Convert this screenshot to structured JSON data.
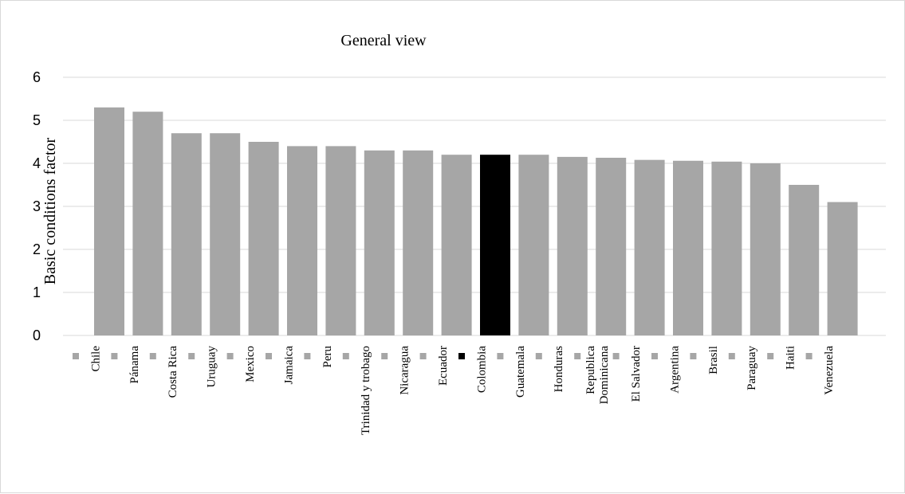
{
  "chart_data": {
    "type": "bar",
    "title": "General view",
    "xlabel": "",
    "ylabel": "Basic conditions factor",
    "ylim": [
      0,
      6
    ],
    "yticks": [
      0,
      1,
      2,
      3,
      4,
      5,
      6
    ],
    "grid": true,
    "legend": "none",
    "bar_color": "#a6a6a6",
    "highlight_color": "#000000",
    "highlight_category": "Colombia",
    "marker_color": "#a6a6a6",
    "categories": [
      "Chile",
      "Pánama",
      "Costa Rica",
      "Uruguay",
      "Mexico",
      "Jamaica",
      "Peru",
      "Trinidad y trobago",
      "Nicaragua",
      "Ecuador",
      "Colombia",
      "Guatemala",
      "Honduras",
      "Republica Dominicana",
      "El Salvador",
      "Argentina",
      "Brasil",
      "Paraguay",
      "Haiti",
      "Venezuela"
    ],
    "category_lines": [
      [
        "Chile"
      ],
      [
        "Pánama"
      ],
      [
        "Costa Rica"
      ],
      [
        "Uruguay"
      ],
      [
        "Mexico"
      ],
      [
        "Jamaica"
      ],
      [
        "Peru"
      ],
      [
        "Trinidad y trobago"
      ],
      [
        "Nicaragua"
      ],
      [
        "Ecuador"
      ],
      [
        "Colombia"
      ],
      [
        "Guatemala"
      ],
      [
        "Honduras"
      ],
      [
        "Republica",
        "Dominicana"
      ],
      [
        "El Salvador"
      ],
      [
        "Argentina"
      ],
      [
        "Brasil"
      ],
      [
        "Paraguay"
      ],
      [
        "Haiti"
      ],
      [
        "Venezuela"
      ]
    ],
    "values": [
      5.3,
      5.2,
      4.7,
      4.7,
      4.5,
      4.4,
      4.4,
      4.3,
      4.3,
      4.2,
      4.2,
      4.2,
      4.15,
      4.13,
      4.08,
      4.06,
      4.04,
      4.0,
      3.5,
      3.1
    ]
  }
}
